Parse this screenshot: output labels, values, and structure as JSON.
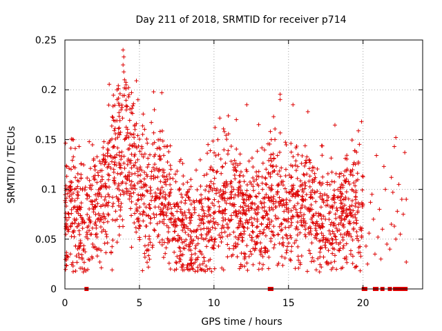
{
  "chart_data": {
    "type": "scatter",
    "title": "Day 211 of 2018, SRMTID for receiver p714",
    "xlabel": "GPS time / hours",
    "ylabel": "SRMTID / TECUs",
    "xlim": [
      0,
      24
    ],
    "ylim": [
      0,
      0.25
    ],
    "xticks": [
      0,
      5,
      10,
      15,
      20
    ],
    "xtick_labels": [
      "0",
      "5",
      "10",
      "15",
      "20"
    ],
    "yticks": [
      0,
      0.05,
      0.1,
      0.15,
      0.2,
      0.25
    ],
    "ytick_labels": [
      "0",
      "0.05",
      "0.1",
      "0.15",
      "0.2",
      "0.25"
    ],
    "grid": true,
    "marker": "+",
    "color": "#dd0000",
    "series": [
      {
        "name": "SRMTID",
        "trend": [
          [
            0.0,
            0.08
          ],
          [
            0.5,
            0.085
          ],
          [
            1.0,
            0.07
          ],
          [
            1.5,
            0.065
          ],
          [
            2.0,
            0.085
          ],
          [
            2.5,
            0.095
          ],
          [
            3.0,
            0.115
          ],
          [
            3.5,
            0.13
          ],
          [
            4.0,
            0.14
          ],
          [
            4.5,
            0.135
          ],
          [
            5.0,
            0.11
          ],
          [
            5.5,
            0.09
          ],
          [
            6.0,
            0.1
          ],
          [
            6.5,
            0.095
          ],
          [
            7.0,
            0.08
          ],
          [
            7.5,
            0.07
          ],
          [
            8.0,
            0.06
          ],
          [
            8.5,
            0.055
          ],
          [
            9.0,
            0.05
          ],
          [
            9.5,
            0.065
          ],
          [
            10.0,
            0.08
          ],
          [
            10.5,
            0.09
          ],
          [
            11.0,
            0.095
          ],
          [
            11.5,
            0.085
          ],
          [
            12.0,
            0.075
          ],
          [
            12.5,
            0.07
          ],
          [
            13.0,
            0.075
          ],
          [
            13.5,
            0.08
          ],
          [
            14.0,
            0.09
          ],
          [
            14.5,
            0.095
          ],
          [
            15.0,
            0.08
          ],
          [
            15.5,
            0.085
          ],
          [
            16.0,
            0.09
          ],
          [
            16.5,
            0.08
          ],
          [
            17.0,
            0.07
          ],
          [
            17.5,
            0.065
          ],
          [
            18.0,
            0.07
          ],
          [
            18.5,
            0.075
          ],
          [
            19.0,
            0.08
          ],
          [
            19.5,
            0.08
          ],
          [
            20.0,
            0.07
          ]
        ],
        "samples_per_hour": 105,
        "highlights": [
          [
            3.9,
            0.24
          ],
          [
            3.95,
            0.233
          ],
          [
            3.9,
            0.225
          ],
          [
            3.95,
            0.218
          ],
          [
            4.0,
            0.21
          ],
          [
            4.1,
            0.205
          ],
          [
            3.5,
            0.2
          ],
          [
            5.95,
            0.198
          ],
          [
            4.9,
            0.19
          ],
          [
            4.6,
            0.186
          ],
          [
            12.2,
            0.185
          ],
          [
            6.0,
            0.18
          ],
          [
            15.3,
            0.185
          ],
          [
            16.3,
            0.178
          ],
          [
            6.5,
            0.197
          ],
          [
            4.3,
            0.195
          ],
          [
            3.7,
            0.196
          ],
          [
            14.0,
            0.173
          ],
          [
            11.5,
            0.17
          ],
          [
            19.9,
            0.168
          ],
          [
            10.7,
            0.158
          ],
          [
            13.0,
            0.165
          ],
          [
            0.95,
            0.143
          ],
          [
            22.2,
            0.152
          ],
          [
            9.6,
            0.145
          ],
          [
            20.9,
            0.134
          ],
          [
            22.1,
            0.143
          ],
          [
            21.4,
            0.123
          ],
          [
            22.8,
            0.137
          ],
          [
            21.9,
            0.112
          ],
          [
            22.4,
            0.105
          ],
          [
            22.0,
            0.097
          ],
          [
            21.5,
            0.1
          ],
          [
            20.6,
            0.095
          ],
          [
            22.6,
            0.09
          ],
          [
            22.9,
            0.09
          ],
          [
            20.5,
            0.087
          ],
          [
            21.1,
            0.08
          ],
          [
            22.3,
            0.078
          ],
          [
            22.7,
            0.075
          ],
          [
            20.7,
            0.07
          ],
          [
            21.9,
            0.065
          ],
          [
            22.1,
            0.063
          ],
          [
            21.3,
            0.06
          ],
          [
            20.4,
            0.056
          ],
          [
            22.5,
            0.055
          ],
          [
            21.0,
            0.052
          ],
          [
            22.2,
            0.05
          ],
          [
            21.6,
            0.045
          ],
          [
            20.2,
            0.043
          ],
          [
            21.8,
            0.04
          ],
          [
            20.8,
            0.035
          ],
          [
            21.2,
            0.03
          ],
          [
            22.9,
            0.027
          ],
          [
            20.3,
            0.025
          ],
          [
            8.9,
            0.018
          ],
          [
            9.1,
            0.02
          ],
          [
            8.5,
            0.023
          ],
          [
            17.2,
            0.022
          ],
          [
            17.6,
            0.025
          ]
        ],
        "zero_values": [
          1.45,
          13.75,
          13.85,
          20.05,
          20.15,
          20.8,
          20.9,
          21.3,
          21.8,
          22.15,
          22.3,
          22.5,
          22.6,
          22.75,
          22.85
        ]
      }
    ]
  }
}
